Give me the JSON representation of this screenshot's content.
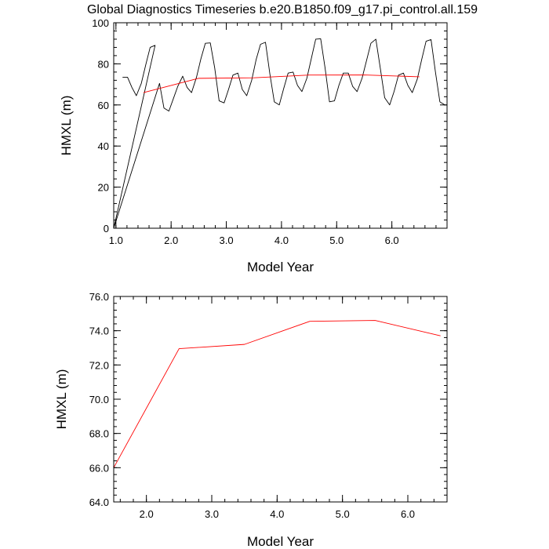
{
  "title": "Global Diagnostics Timeseries b.e20.B1850.f09_g17.pi_control.all.159",
  "chart_data": [
    {
      "type": "line",
      "xlabel": "Model Year",
      "ylabel": "HMXL (m)",
      "xlim": [
        0.96,
        7.0
      ],
      "ylim": [
        0,
        100
      ],
      "xticks": [
        1,
        2,
        3,
        4,
        5,
        6
      ],
      "xtick_labels": [
        "1.0",
        "2.0",
        "3.0",
        "4.0",
        "5.0",
        "6.0"
      ],
      "yticks": [
        0,
        20,
        40,
        60,
        80,
        100
      ],
      "ytick_labels": [
        "0",
        "20",
        "40",
        "60",
        "80",
        "100"
      ],
      "grid": false,
      "series": [
        {
          "color": "#000000",
          "x": [
            1.12,
            1.21,
            1.29,
            1.37,
            1.46,
            1.54,
            1.62,
            1.71,
            0.96,
            1.79,
            1.87,
            1.96,
            2.04,
            2.12,
            2.21,
            2.29,
            2.37,
            2.46,
            2.54,
            2.62,
            2.71,
            2.79,
            2.87,
            2.96,
            3.04,
            3.12,
            3.21,
            3.29,
            3.37,
            3.46,
            3.54,
            3.62,
            3.71,
            3.79,
            3.87,
            3.96,
            4.04,
            4.12,
            4.21,
            4.29,
            4.37,
            4.46,
            4.54,
            4.62,
            4.71,
            4.79,
            4.87,
            4.96,
            5.04,
            5.12,
            5.21,
            5.29,
            5.37,
            5.46,
            5.54,
            5.62,
            5.71,
            5.79,
            5.87,
            5.96,
            6.04,
            6.12,
            6.21,
            6.29,
            6.37,
            6.46,
            6.54,
            6.62,
            6.71,
            6.79,
            6.87,
            6.96
          ],
          "y": [
            73.5,
            73.5,
            68.5,
            64.5,
            70.5,
            79.5,
            88,
            89,
            0,
            70.5,
            58.5,
            57,
            63,
            69,
            74,
            68.5,
            66,
            73.5,
            82.5,
            90,
            90.2,
            78,
            62,
            61,
            67.5,
            74.5,
            75.5,
            67.5,
            64.5,
            72,
            82,
            89.5,
            90.5,
            75,
            61.5,
            60,
            68,
            75.5,
            76,
            69.5,
            66.5,
            73,
            82.5,
            92,
            92.2,
            78,
            61.5,
            62,
            69.5,
            75.5,
            75.5,
            69,
            66.5,
            73,
            81.5,
            90,
            92,
            78,
            63.5,
            60,
            66.5,
            74.5,
            75.5,
            69.5,
            66,
            72.5,
            82,
            91,
            91.8,
            76,
            61.5,
            60
          ]
        },
        {
          "color": "#ff0000",
          "x": [
            1.5,
            2.5,
            3.5,
            4.5,
            5.5,
            6.5
          ],
          "y": [
            66.0,
            72.95,
            73.2,
            74.55,
            74.6,
            73.7
          ]
        }
      ]
    },
    {
      "type": "line",
      "xlabel": "Model Year",
      "ylabel": "HMXL (m)",
      "xlim": [
        1.5,
        6.6
      ],
      "ylim": [
        64,
        76
      ],
      "xticks": [
        2,
        3,
        4,
        5,
        6
      ],
      "xtick_labels": [
        "2.0",
        "3.0",
        "4.0",
        "5.0",
        "6.0"
      ],
      "yticks": [
        64,
        66,
        68,
        70,
        72,
        74,
        76
      ],
      "ytick_labels": [
        "64.0",
        "66.0",
        "68.0",
        "70.0",
        "72.0",
        "74.0",
        "76.0"
      ],
      "grid": false,
      "series": [
        {
          "color": "#ff0000",
          "x": [
            1.5,
            2.5,
            3.5,
            4.5,
            5.5,
            6.5
          ],
          "y": [
            66.0,
            72.95,
            73.2,
            74.55,
            74.6,
            73.7
          ]
        }
      ]
    }
  ]
}
